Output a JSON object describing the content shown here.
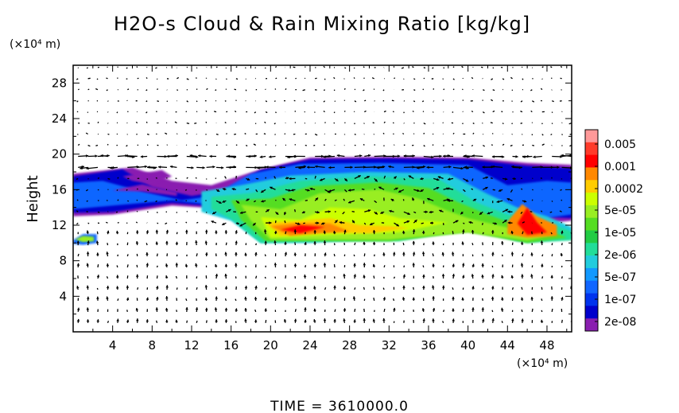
{
  "chart_data": {
    "type": "heatmap",
    "title": "H2O-s Cloud & Rain Mixing Ratio [kg/kg]",
    "ylabel": "Height",
    "y_unit": "(×10⁴ m)",
    "x_unit": "(×10⁴ m)",
    "x_ticks": [
      4,
      8,
      12,
      16,
      20,
      24,
      28,
      32,
      36,
      40,
      44,
      48
    ],
    "y_ticks": [
      4,
      8,
      12,
      16,
      20,
      24,
      28
    ],
    "xlim": [
      0,
      50.5
    ],
    "ylim": [
      0,
      30
    ],
    "colorbar": {
      "labels": [
        "0.005",
        "0.001",
        "0.0002",
        "5e-05",
        "1e-05",
        "2e-06",
        "5e-07",
        "1e-07",
        "2e-08"
      ],
      "colors": [
        "#ff9999",
        "#ff3b2a",
        "#ff0000",
        "#ff8800",
        "#ffcc00",
        "#ccff00",
        "#99ee22",
        "#55dd22",
        "#22cc44",
        "#22dd99",
        "#22ccdd",
        "#1199ff",
        "#1166ff",
        "#0033ee",
        "#0000cc",
        "#8a1fb0"
      ]
    },
    "footer": "TIME = 3610000.0",
    "field": {
      "cloud_layer_height_range": [
        9.5,
        19.5
      ],
      "peak_mixing_ratio_regions_x": [
        [
          19,
          32
        ],
        [
          44,
          49
        ]
      ],
      "anvil_top_height": 19,
      "low_cloud_patch": {
        "x": [
          0,
          2.5
        ],
        "y": [
          10,
          11
        ]
      }
    }
  }
}
